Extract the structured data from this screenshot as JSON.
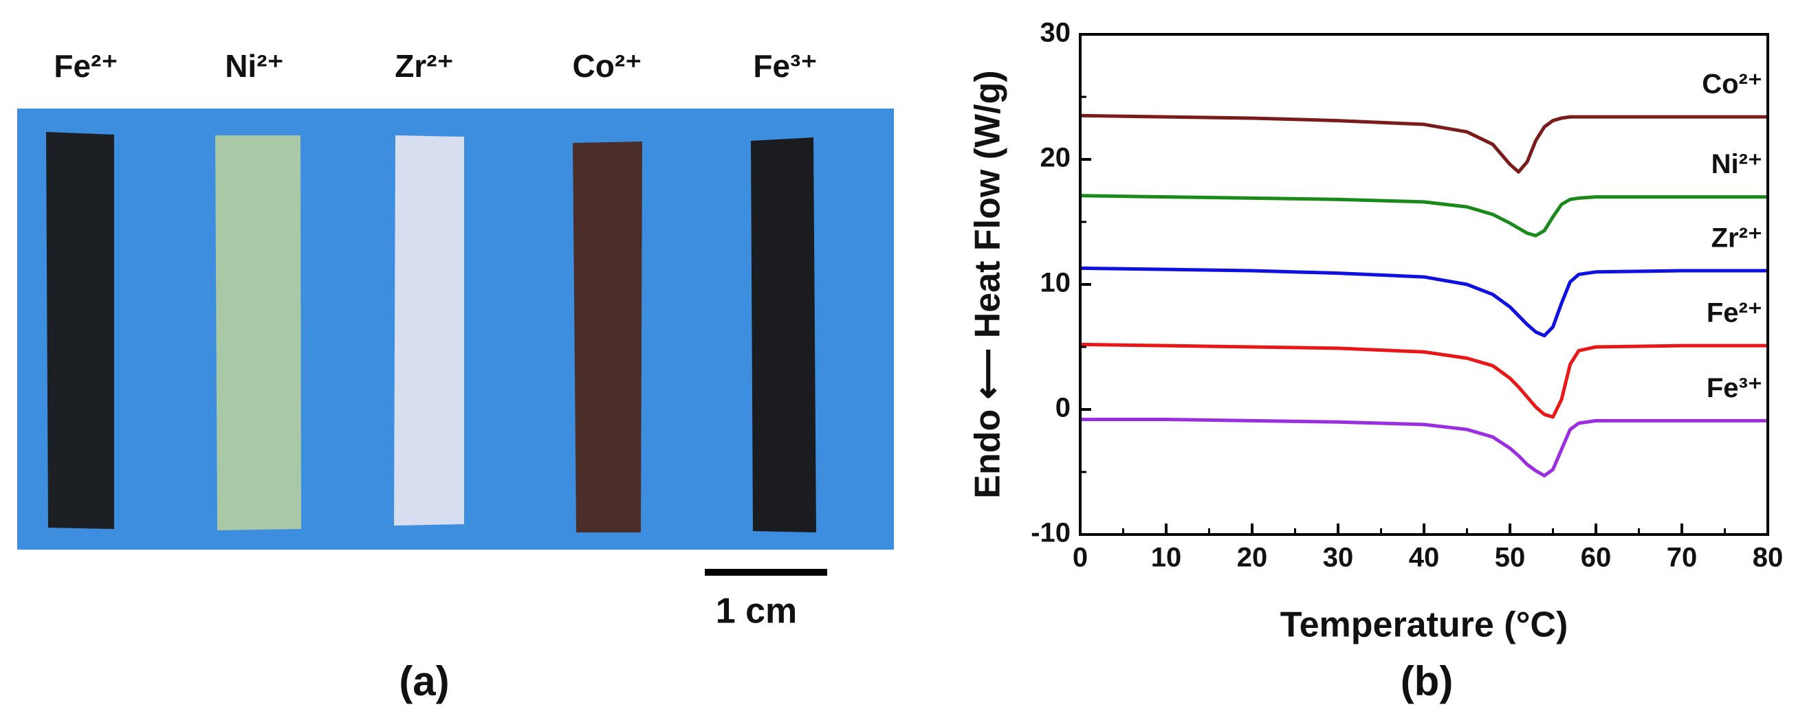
{
  "photo": {
    "labels": [
      "Fe²⁺",
      "Ni²⁺",
      "Zr²⁺",
      "Co²⁺",
      "Fe³⁺"
    ],
    "scale_bar": "1 cm",
    "caption": "(a)"
  },
  "chart_data": {
    "type": "line",
    "caption": "(b)",
    "x_label": "Temperature (°C)",
    "y_label": "Endo ⟵ Heat Flow (W/g)",
    "xlim": [
      0,
      80
    ],
    "xticks": [
      0,
      10,
      20,
      30,
      40,
      50,
      60,
      70,
      80
    ],
    "ylim": [
      -10,
      30
    ],
    "yticks": [
      -10,
      0,
      10,
      20,
      30
    ],
    "x": [
      0,
      10,
      20,
      30,
      40,
      45,
      48,
      50,
      51,
      52,
      53,
      54,
      55,
      56,
      57,
      58,
      60,
      70,
      80
    ],
    "series": [
      {
        "name": "Co²⁺",
        "color": "#7a1c1c",
        "values": [
          23.5,
          23.4,
          23.3,
          23.1,
          22.8,
          22.2,
          21.2,
          19.6,
          19.0,
          19.8,
          21.5,
          22.6,
          23.1,
          23.3,
          23.4,
          23.4,
          23.4,
          23.4,
          23.4
        ]
      },
      {
        "name": "Ni²⁺",
        "color": "#1a8a1a",
        "values": [
          17.1,
          17.0,
          16.9,
          16.8,
          16.6,
          16.2,
          15.6,
          14.9,
          14.5,
          14.1,
          13.9,
          14.3,
          15.4,
          16.4,
          16.8,
          16.9,
          17.0,
          17.0,
          17.0
        ]
      },
      {
        "name": "Zr²⁺",
        "color": "#1010e0",
        "values": [
          11.3,
          11.2,
          11.1,
          10.9,
          10.6,
          10.0,
          9.2,
          8.2,
          7.5,
          6.8,
          6.2,
          5.9,
          6.6,
          8.5,
          10.2,
          10.8,
          11.0,
          11.1,
          11.1
        ]
      },
      {
        "name": "Fe²⁺",
        "color": "#e81818",
        "values": [
          5.2,
          5.1,
          5.0,
          4.9,
          4.6,
          4.1,
          3.5,
          2.5,
          1.8,
          1.0,
          0.2,
          -0.4,
          -0.6,
          0.8,
          3.6,
          4.7,
          5.0,
          5.1,
          5.1
        ]
      },
      {
        "name": "Fe³⁺",
        "color": "#9a2ee0",
        "values": [
          -0.8,
          -0.8,
          -0.9,
          -1.0,
          -1.2,
          -1.6,
          -2.2,
          -3.1,
          -3.7,
          -4.4,
          -4.9,
          -5.3,
          -4.8,
          -3.2,
          -1.6,
          -1.1,
          -0.9,
          -0.9,
          -0.9
        ]
      }
    ]
  }
}
